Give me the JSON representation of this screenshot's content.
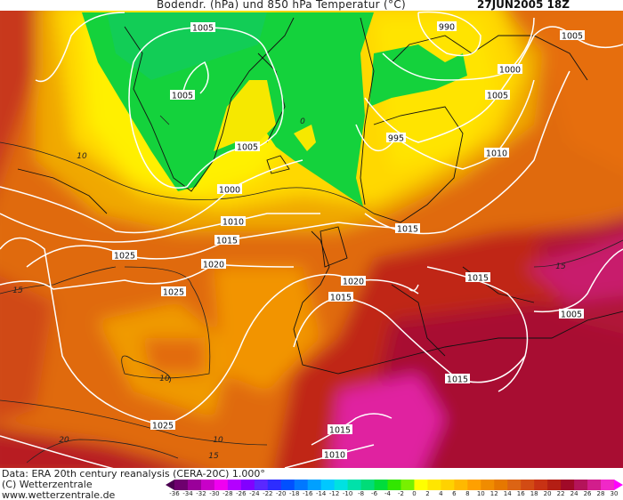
{
  "header": {
    "title": "Bodendr. (hPa) und 850 hPa Temperatur (°C)",
    "date": "27JUN2005 18Z"
  },
  "footer": {
    "data_source": "Data: ERA 20th century reanalysis (CERA-20C) 1.000°",
    "copyright": "(C) Wetterzentrale",
    "url": "www.wetterzentrale.de"
  },
  "map": {
    "isobar_labels": [
      "1005",
      "1005",
      "1005",
      "1000",
      "1010",
      "1015",
      "1020",
      "1025",
      "1025",
      "1025",
      "990",
      "1005",
      "1000",
      "1005",
      "995",
      "1010",
      "1015",
      "1020",
      "1015",
      "1015",
      "1005",
      "1015",
      "1015",
      "1010"
    ],
    "temperature_labels": [
      "10",
      "15",
      "10",
      "20",
      "10",
      "15",
      "15",
      "0"
    ],
    "colors": {
      "isobar": "#ffffff",
      "contour": "#000000",
      "land_outline": "#000000"
    }
  },
  "colorbar": {
    "unit": "°C",
    "labels": [
      "-36",
      "-34",
      "-32",
      "-30",
      "-28",
      "-26",
      "-24",
      "-22",
      "-20",
      "-18",
      "-16",
      "-14",
      "-12",
      "-10",
      "-8",
      "-6",
      "-4",
      "-2",
      "0",
      "2",
      "4",
      "6",
      "8",
      "10",
      "12",
      "14",
      "16",
      "18",
      "20",
      "22",
      "24",
      "26",
      "28",
      "30",
      "32"
    ],
    "colors": [
      "#4a0050",
      "#6e006e",
      "#9a009a",
      "#c800c8",
      "#f000f0",
      "#b400ff",
      "#8200ff",
      "#5a28ff",
      "#2d2dff",
      "#0050ff",
      "#0078ff",
      "#00a0ff",
      "#00c8ff",
      "#00e1e1",
      "#00e1aa",
      "#00dc78",
      "#00dc3c",
      "#32e600",
      "#78f000",
      "#ffff00",
      "#ffe600",
      "#ffd200",
      "#ffb900",
      "#ffa000",
      "#f08c00",
      "#e67800",
      "#dc6414",
      "#d24b14",
      "#c83214",
      "#b41e14",
      "#a00a28",
      "#b4145a",
      "#d21e8c",
      "#f028c8",
      "#ff00ff"
    ]
  }
}
